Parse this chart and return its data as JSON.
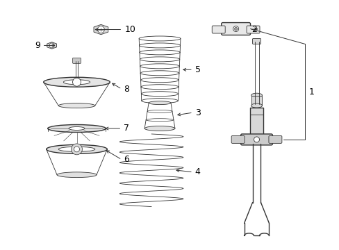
{
  "bg_color": "#ffffff",
  "line_color": "#333333",
  "fig_w": 4.89,
  "fig_h": 3.6,
  "dpi": 100
}
